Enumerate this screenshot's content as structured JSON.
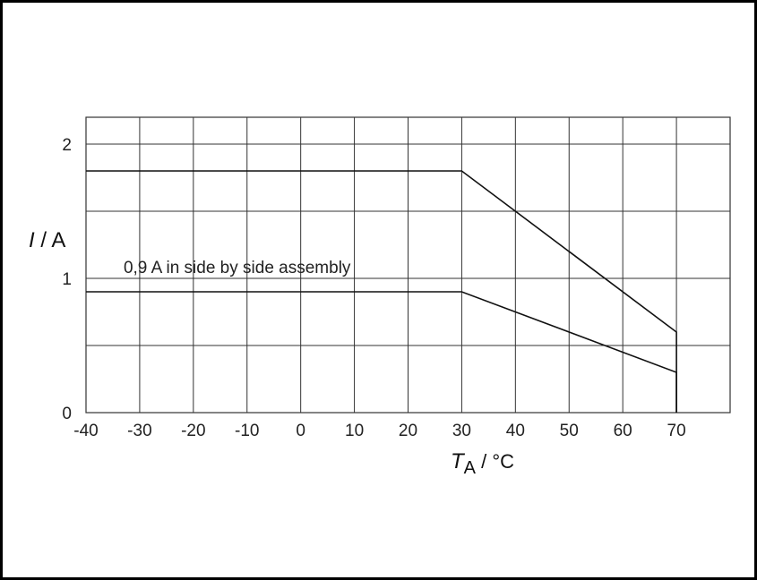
{
  "chart_data": {
    "type": "line",
    "xlabel_italic": "T",
    "xlabel_sub": "A",
    "xlabel_rest": " / °C",
    "ylabel_italic": "I",
    "ylabel_rest": " / A",
    "xlim": [
      -40,
      80
    ],
    "ylim": [
      0,
      2.2
    ],
    "x_ticks": [
      -40,
      -30,
      -20,
      -10,
      0,
      10,
      20,
      30,
      40,
      50,
      60,
      70
    ],
    "y_ticks": [
      0,
      1,
      2
    ],
    "grid": true,
    "series": [
      {
        "points": [
          [
            -40,
            1.8
          ],
          [
            30,
            1.8
          ],
          [
            70,
            0.6
          ],
          [
            70,
            0
          ]
        ]
      },
      {
        "points": [
          [
            -40,
            0.9
          ],
          [
            30,
            0.9
          ],
          [
            70,
            0.3
          ],
          [
            70,
            0
          ]
        ]
      }
    ],
    "annotations": [
      {
        "text": "0,9 A in side by side assembly",
        "x": -33,
        "y": 1.0
      }
    ]
  }
}
